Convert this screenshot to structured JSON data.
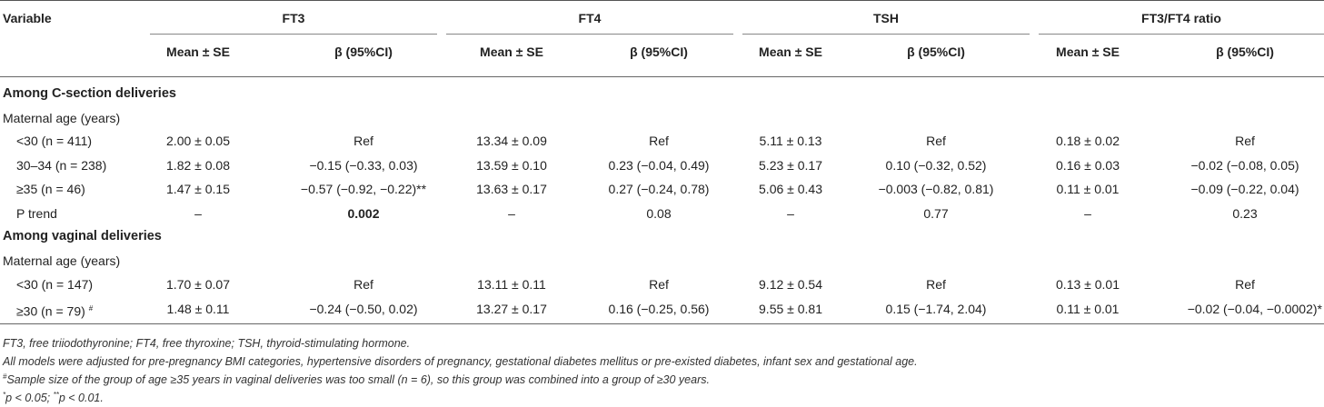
{
  "header": {
    "variable": "Variable",
    "groups": [
      "FT3",
      "FT4",
      "TSH",
      "FT3/FT4 ratio"
    ],
    "sub_mean": "Mean ± SE",
    "sub_beta": "β (95%CI)"
  },
  "sections": [
    {
      "title": "Among C-section deliveries",
      "label": "Maternal age (years)",
      "rows": [
        {
          "name": "<30 (n = 411)",
          "cells": [
            "2.00 ± 0.05",
            "Ref",
            "13.34 ± 0.09",
            "Ref",
            "5.11 ± 0.13",
            "Ref",
            "0.18 ± 0.02",
            "Ref"
          ]
        },
        {
          "name": "30–34 (n = 238)",
          "cells": [
            "1.82 ± 0.08",
            "−0.15 (−0.33, 0.03)",
            "13.59 ± 0.10",
            "0.23 (−0.04, 0.49)",
            "5.23 ± 0.17",
            "0.10 (−0.32, 0.52)",
            "0.16 ± 0.03",
            "−0.02 (−0.08, 0.05)"
          ]
        },
        {
          "name": "≥35 (n = 46)",
          "cells": [
            "1.47 ± 0.15",
            "−0.57 (−0.92, −0.22)**",
            "13.63 ± 0.17",
            "0.27 (−0.24, 0.78)",
            "5.06 ± 0.43",
            "−0.003 (−0.82, 0.81)",
            "0.11 ± 0.01",
            "−0.09 (−0.22, 0.04)"
          ]
        },
        {
          "name": "P trend",
          "cells": [
            "–",
            "0.002",
            "–",
            "0.08",
            "–",
            "0.77",
            "–",
            "0.23"
          ]
        }
      ]
    },
    {
      "title": "Among vaginal deliveries",
      "label": "Maternal age (years)",
      "rows": [
        {
          "name": "<30 (n = 147)",
          "cells": [
            "1.70 ± 0.07",
            "Ref",
            "13.11 ± 0.11",
            "Ref",
            "9.12 ± 0.54",
            "Ref",
            "0.13 ± 0.01",
            "Ref"
          ]
        },
        {
          "name": "≥30 (n = 79)",
          "sup": "#",
          "cells": [
            "1.48 ± 0.11",
            "−0.24 (−0.50, 0.02)",
            "13.27 ± 0.17",
            "0.16 (−0.25, 0.56)",
            "9.55 ± 0.81",
            "0.15 (−1.74, 2.04)",
            "0.11 ± 0.01",
            "−0.02 (−0.04, −0.0002)*"
          ]
        }
      ]
    }
  ],
  "footnotes": {
    "abbrev": "FT3, free triiodothyronine; FT4, free thyroxine; TSH, thyroid-stimulating hormone.",
    "adjust": "All models were adjusted for pre-pregnancy BMI categories, hypertensive disorders of pregnancy, gestational diabetes mellitus or pre-existed diabetes, infant sex and gestational age.",
    "hash_mark": "#",
    "hash_note": "Sample size of the group of age ≥35 years in vaginal deliveries was too small (n = 6), so this group was combined into a group of ≥30 years.",
    "sig_mark1": "*",
    "sig_text1": "p < 0.05; ",
    "sig_mark2": "**",
    "sig_text2": "p < 0.01."
  }
}
